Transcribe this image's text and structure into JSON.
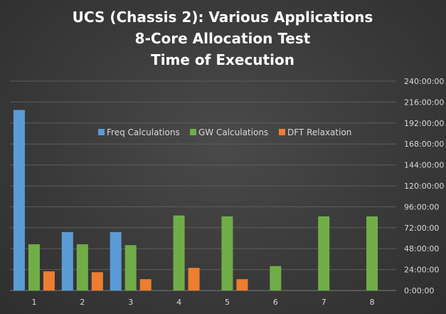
{
  "chart_data": {
    "type": "bar",
    "title_lines": [
      "UCS (Chassis 2): Various Applications",
      "8-Core Allocation Test",
      "Time of Execution"
    ],
    "categories": [
      "1",
      "2",
      "3",
      "4",
      "5",
      "6",
      "7",
      "8"
    ],
    "y_axis_position": "right",
    "y_unit": "hours (hh:mm:ss)",
    "ylim": [
      0,
      240
    ],
    "y_ticks": [
      0,
      24,
      48,
      72,
      96,
      120,
      144,
      168,
      192,
      216,
      240
    ],
    "y_tick_labels": [
      "0:00:00",
      "24:00:00",
      "48:00:00",
      "72:00:00",
      "96:00:00",
      "120:00:00",
      "144:00:00",
      "168:00:00",
      "192:00:00",
      "216:00:00",
      "240:00:00"
    ],
    "grid": true,
    "legend_position": "top",
    "series": [
      {
        "name": "Freq Calculations",
        "color": "#5b9bd5",
        "values": [
          207,
          67,
          67,
          null,
          null,
          null,
          null,
          null
        ]
      },
      {
        "name": "GW Calculations",
        "color": "#70ad47",
        "values": [
          53,
          53,
          52,
          86,
          85,
          28,
          85,
          85
        ]
      },
      {
        "name": "DFT Relaxation",
        "color": "#ed7d31",
        "values": [
          22,
          21,
          13,
          26,
          13,
          null,
          null,
          null
        ]
      }
    ]
  }
}
